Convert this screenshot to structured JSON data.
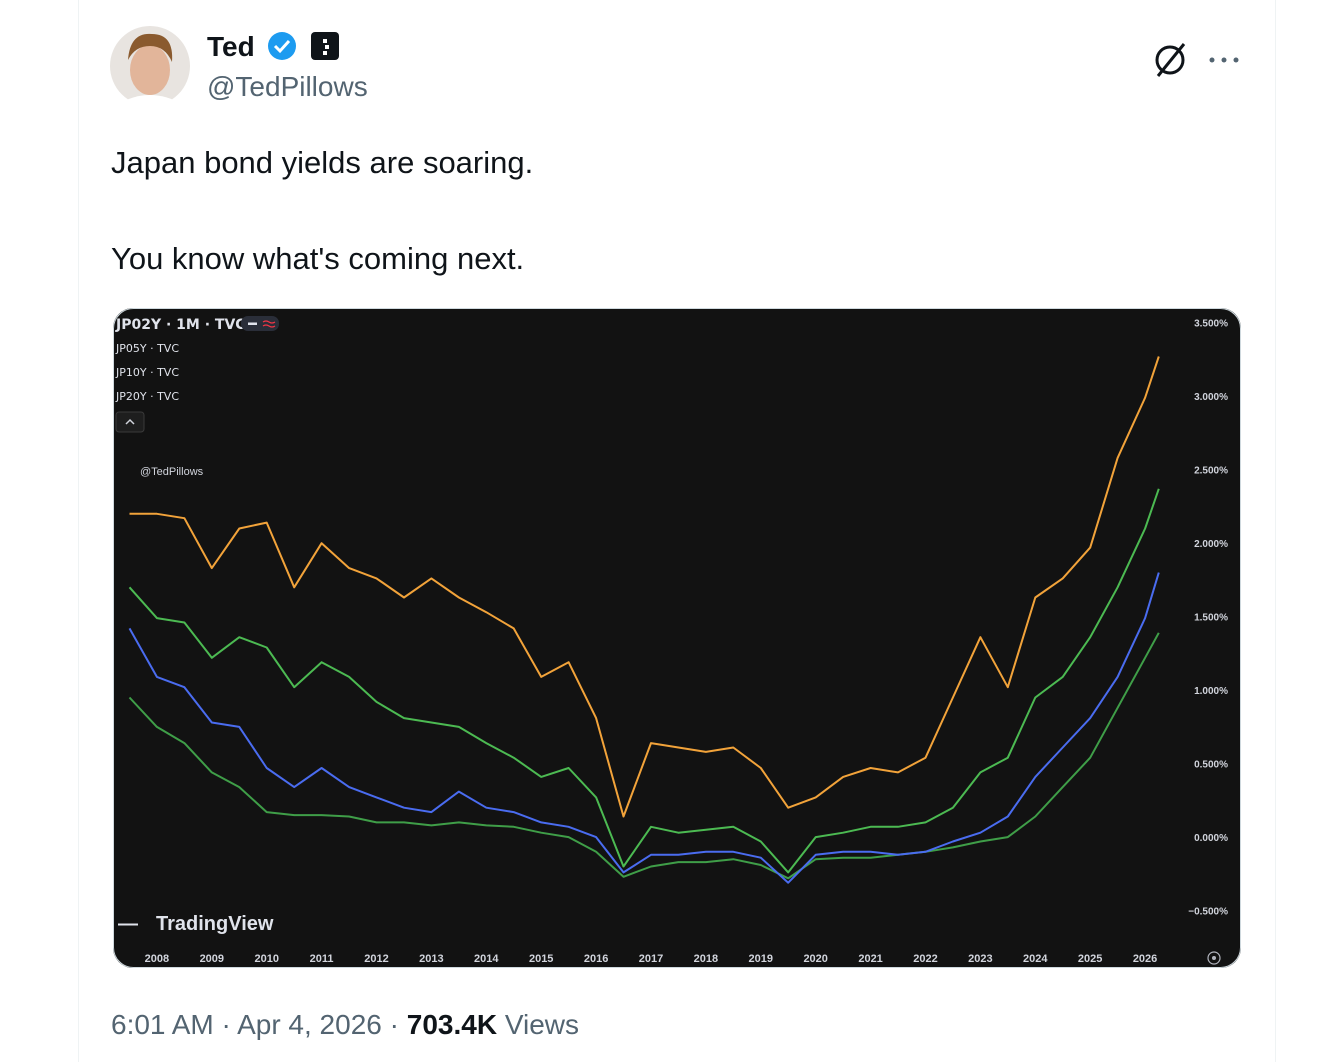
{
  "tweet": {
    "name": "Ted",
    "handle": "@TedPillows",
    "text": [
      "Japan bond yields are soaring.",
      "You know what's coming next."
    ],
    "time": "6:01 AM",
    "separator": "·",
    "date": "Apr 4, 2026",
    "views": "703.4K",
    "views_label": "Views"
  },
  "chart_data": {
    "type": "line",
    "watermark": "@TedPillows",
    "brand": "TradingView",
    "x": [
      2007.5,
      2008,
      2008.5,
      2009,
      2009.5,
      2010,
      2010.5,
      2011,
      2011.5,
      2012,
      2012.5,
      2013,
      2013.5,
      2014,
      2014.5,
      2015,
      2015.5,
      2016,
      2016.5,
      2017,
      2017.5,
      2018,
      2018.5,
      2019,
      2019.5,
      2020,
      2020.5,
      2021,
      2021.5,
      2022,
      2022.5,
      2023,
      2023.5,
      2024,
      2024.5,
      2025,
      2025.5,
      2026,
      2026.25
    ],
    "xlim": [
      2007.2,
      2026.6
    ],
    "xticks": [
      2008,
      2009,
      2010,
      2011,
      2012,
      2013,
      2014,
      2015,
      2016,
      2017,
      2018,
      2019,
      2020,
      2021,
      2022,
      2023,
      2024,
      2025,
      2026
    ],
    "ylim": [
      -0.7,
      3.6
    ],
    "yticks": [
      {
        "value": -0.5,
        "label": "−0.500%"
      },
      {
        "value": 0,
        "label": "0.000%"
      },
      {
        "value": 0.5,
        "label": "0.500%"
      },
      {
        "value": 1,
        "label": "1.000%"
      },
      {
        "value": 1.5,
        "label": "1.500%"
      },
      {
        "value": 2,
        "label": "2.000%"
      },
      {
        "value": 2.5,
        "label": "2.500%"
      },
      {
        "value": 3,
        "label": "3.000%"
      },
      {
        "value": 3.5,
        "label": "3.500%"
      }
    ],
    "grid": false,
    "series": [
      {
        "name": "JP02Y · 1M · TVC",
        "color": "#3f9e48",
        "values": [
          0.95,
          0.75,
          0.64,
          0.44,
          0.34,
          0.17,
          0.15,
          0.15,
          0.14,
          0.1,
          0.1,
          0.08,
          0.1,
          0.08,
          0.07,
          0.03,
          0,
          -0.1,
          -0.27,
          -0.2,
          -0.17,
          -0.17,
          -0.15,
          -0.19,
          -0.28,
          -0.15,
          -0.14,
          -0.14,
          -0.12,
          -0.1,
          -0.07,
          -0.03,
          0,
          0.14,
          0.34,
          0.54,
          0.88,
          1.22,
          1.39
        ]
      },
      {
        "name": "JP05Y · TVC",
        "color": "#4a6cf0",
        "values": [
          1.42,
          1.09,
          1.02,
          0.78,
          0.75,
          0.47,
          0.34,
          0.47,
          0.34,
          0.27,
          0.2,
          0.17,
          0.31,
          0.2,
          0.17,
          0.1,
          0.07,
          0,
          -0.24,
          -0.12,
          -0.12,
          -0.1,
          -0.1,
          -0.14,
          -0.31,
          -0.12,
          -0.1,
          -0.1,
          -0.12,
          -0.1,
          -0.03,
          0.03,
          0.14,
          0.41,
          0.61,
          0.81,
          1.09,
          1.49,
          1.8
        ]
      },
      {
        "name": "JP10Y · TVC",
        "color": "#4cba52",
        "values": [
          1.7,
          1.49,
          1.46,
          1.22,
          1.36,
          1.29,
          1.02,
          1.19,
          1.09,
          0.92,
          0.81,
          0.78,
          0.75,
          0.64,
          0.54,
          0.41,
          0.47,
          0.27,
          -0.2,
          0.07,
          0.03,
          0.05,
          0.07,
          -0.03,
          -0.24,
          0,
          0.03,
          0.07,
          0.07,
          0.1,
          0.2,
          0.44,
          0.54,
          0.95,
          1.09,
          1.36,
          1.7,
          2.1,
          2.37
        ]
      },
      {
        "name": "JP20Y · TVC",
        "color": "#f2a33a",
        "values": [
          2.2,
          2.2,
          2.17,
          1.83,
          2.1,
          2.14,
          1.7,
          2.0,
          1.83,
          1.76,
          1.63,
          1.76,
          1.63,
          1.53,
          1.42,
          1.09,
          1.19,
          0.81,
          0.14,
          0.64,
          0.61,
          0.58,
          0.61,
          0.47,
          0.2,
          0.27,
          0.41,
          0.47,
          0.44,
          0.54,
          0.95,
          1.36,
          1.02,
          1.63,
          1.76,
          1.97,
          2.58,
          2.99,
          3.27
        ]
      }
    ]
  }
}
